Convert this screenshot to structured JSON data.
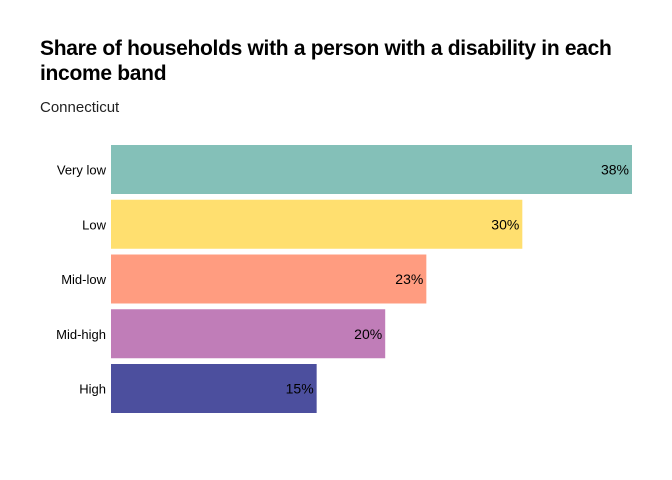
{
  "chart_data": {
    "type": "bar",
    "orientation": "horizontal",
    "title": "Share of households with a person with a disability in each income band",
    "subtitle": "Connecticut",
    "categories": [
      "Very low",
      "Low",
      "Mid-low",
      "Mid-high",
      "High"
    ],
    "values": [
      38,
      30,
      23,
      20,
      15
    ],
    "value_labels": [
      "38%",
      "30%",
      "23%",
      "20%",
      "15%"
    ],
    "colors": [
      "#84c0b8",
      "#ffdf6f",
      "#ff9c80",
      "#c07db8",
      "#4c4f9e"
    ],
    "xlim": [
      0,
      38
    ],
    "grid": false,
    "legend": "none",
    "xlabel": "",
    "ylabel": ""
  }
}
